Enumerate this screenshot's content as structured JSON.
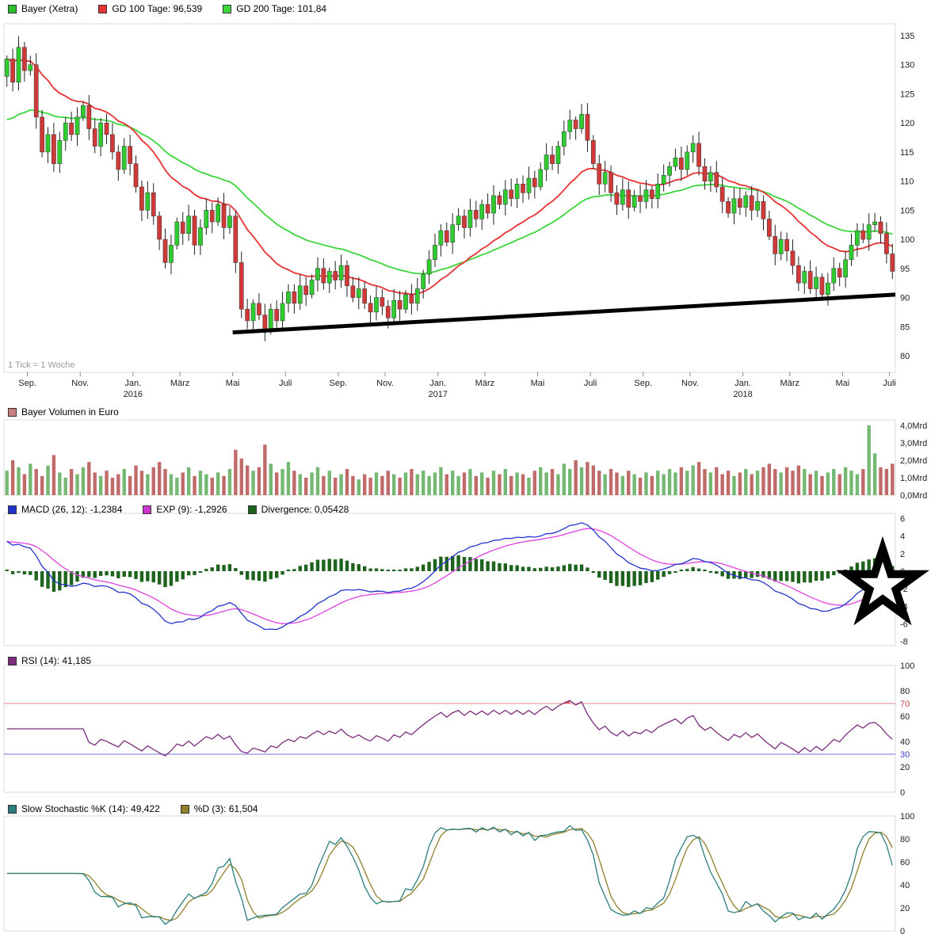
{
  "price_note": "1 Tick = 1 Woche",
  "legends": {
    "price": [
      {
        "label": "Bayer (Xetra)",
        "color": "#2fbe2f"
      },
      {
        "label": "GD 100 Tage: 96,539",
        "color": "#e63232"
      },
      {
        "label": "GD 200 Tage: 101,84",
        "color": "#3cd63c"
      }
    ],
    "volume": [
      {
        "label": "Bayer Volumen in Euro",
        "color": "#c98080"
      }
    ],
    "macd": [
      {
        "label": "MACD (26, 12): -1,2384",
        "color": "#2233cc"
      },
      {
        "label": "EXP (9): -1,2926",
        "color": "#cc33cc"
      },
      {
        "label": "Divergence: 0,05428",
        "color": "#1e641e"
      }
    ],
    "rsi": [
      {
        "label": "RSI (14): 41,185",
        "color": "#7b2d7b"
      }
    ],
    "stoch": [
      {
        "label": "Slow Stochastic %K (14): 49,422",
        "color": "#2a7d7d"
      },
      {
        "label": "%D (3): 61,504",
        "color": "#8f7f2a"
      }
    ]
  },
  "annotations": [
    {
      "type": "star",
      "panel": "macd",
      "color": "#000000"
    }
  ],
  "chart_data": [
    {
      "type": "candlestick",
      "title": "Bayer (Xetra)",
      "timeframe_note": "1 Tick = 1 Woche",
      "ylim": [
        80,
        137
      ],
      "y_ticks": [
        135,
        130,
        125,
        120,
        115,
        110,
        105,
        100,
        95,
        90,
        85,
        80
      ],
      "x_ticks": [
        {
          "label": "Sep.",
          "week": 5
        },
        {
          "label": "Nov.",
          "week": 14
        },
        {
          "label": "Jan.",
          "week": 23,
          "year": "2016"
        },
        {
          "label": "März",
          "week": 31
        },
        {
          "label": "Mai",
          "week": 40
        },
        {
          "label": "Juli",
          "week": 49
        },
        {
          "label": "Sep.",
          "week": 58
        },
        {
          "label": "Nov.",
          "week": 66
        },
        {
          "label": "Jan.",
          "week": 75,
          "year": "2017"
        },
        {
          "label": "März",
          "week": 83
        },
        {
          "label": "Mai",
          "week": 92
        },
        {
          "label": "Juli",
          "week": 101
        },
        {
          "label": "Sep.",
          "week": 110
        },
        {
          "label": "Nov.",
          "week": 118
        },
        {
          "label": "Jan.",
          "week": 127,
          "year": "2018"
        },
        {
          "label": "März",
          "week": 135
        },
        {
          "label": "Mai",
          "week": 144
        },
        {
          "label": "Juli",
          "week": 152
        }
      ],
      "first_open": 128,
      "weekly_closes": [
        131,
        127,
        133,
        129,
        130,
        121,
        115,
        118,
        113,
        117,
        120,
        118,
        121,
        123,
        119,
        116,
        120,
        118,
        115,
        112,
        116,
        113,
        109,
        105,
        108,
        104,
        100,
        96,
        99,
        103,
        101,
        104,
        99,
        102,
        105,
        103,
        106,
        102,
        104,
        96,
        88,
        86,
        89,
        87,
        84.5,
        88,
        86,
        89,
        91,
        89,
        92,
        90.5,
        93,
        95,
        92.5,
        94.5,
        93,
        95.5,
        92,
        90,
        91.5,
        89,
        87.5,
        90,
        88.5,
        86.5,
        89.5,
        88,
        90.5,
        89,
        91.5,
        94,
        96.5,
        99,
        101.5,
        99.5,
        102.5,
        104,
        102,
        105,
        103.5,
        106,
        104.5,
        107.5,
        106,
        108.5,
        107,
        109.5,
        108,
        110.5,
        109,
        112,
        114.5,
        113,
        116,
        118.5,
        120.5,
        119,
        121.5,
        117,
        113,
        109.5,
        111.5,
        108,
        106,
        108.5,
        105.5,
        107.5,
        106.5,
        108.5,
        107,
        109.5,
        111,
        112.5,
        114,
        112,
        115,
        116.5,
        112.5,
        110,
        111.5,
        109,
        106.5,
        104.5,
        107,
        105.5,
        107.5,
        105,
        106.5,
        103.5,
        100.5,
        97.5,
        100,
        98,
        95.5,
        92.5,
        94.5,
        91.5,
        93.5,
        90.5,
        92.5,
        95,
        93.5,
        96.5,
        99,
        101.5,
        100,
        102.5,
        103,
        101,
        97.5,
        94.5
      ],
      "overlays": [
        {
          "name": "GD 100 Tage",
          "type": "moving-average",
          "weeks": 20,
          "seed": 131,
          "color": "#e63232",
          "current": "96,539"
        },
        {
          "name": "GD 200 Tage",
          "type": "moving-average",
          "weeks": 40,
          "seed": 120,
          "color": "#3cd63c",
          "current": "101,84"
        }
      ],
      "trendline": {
        "from_week": 40,
        "from_value": 84,
        "to_value": 90.5,
        "color": "#000000",
        "width": 5
      },
      "colors": {
        "up": "#2ecc2e",
        "down": "#d13838",
        "wick": "#222222"
      }
    },
    {
      "type": "bar",
      "title": "Bayer Volumen in Euro",
      "unit": "Mrd",
      "ylim": [
        0,
        4
      ],
      "y_ticks": [
        "4,0Mrd",
        "3,0Mrd",
        "2,0Mrd",
        "1,0Mrd",
        "0,0Mrd"
      ],
      "values": [
        1.4,
        2.0,
        1.6,
        1.2,
        1.8,
        1.5,
        1.1,
        1.7,
        2.3,
        1.3,
        1.0,
        1.5,
        1.2,
        1.6,
        1.9,
        1.3,
        1.1,
        1.4,
        1.0,
        1.2,
        1.5,
        1.1,
        1.7,
        1.4,
        1.2,
        1.6,
        1.9,
        1.5,
        1.2,
        1.0,
        1.3,
        1.6,
        1.1,
        1.4,
        1.2,
        1.0,
        1.3,
        1.1,
        1.5,
        2.6,
        2.1,
        1.7,
        1.4,
        1.6,
        2.9,
        1.8,
        1.3,
        1.5,
        1.9,
        1.4,
        1.2,
        1.0,
        1.3,
        1.6,
        1.1,
        1.4,
        1.0,
        1.2,
        1.5,
        1.1,
        0.9,
        1.2,
        1.0,
        1.3,
        1.1,
        1.4,
        1.2,
        1.0,
        1.3,
        1.5,
        1.2,
        1.4,
        1.1,
        1.3,
        1.6,
        1.2,
        1.4,
        1.1,
        1.3,
        1.5,
        1.1,
        1.3,
        1.0,
        1.4,
        1.2,
        1.5,
        1.1,
        1.3,
        1.2,
        1.0,
        1.4,
        1.6,
        1.3,
        1.5,
        1.2,
        1.8,
        1.5,
        2.0,
        1.6,
        1.9,
        1.7,
        1.4,
        1.2,
        1.5,
        1.3,
        1.1,
        1.4,
        1.2,
        1.0,
        1.3,
        1.1,
        1.4,
        1.2,
        1.5,
        1.3,
        1.6,
        1.4,
        1.7,
        1.9,
        1.5,
        1.3,
        1.6,
        1.2,
        1.4,
        1.1,
        1.3,
        1.5,
        1.2,
        1.4,
        1.6,
        1.8,
        1.5,
        1.3,
        1.6,
        1.4,
        1.7,
        1.5,
        1.2,
        1.4,
        1.1,
        1.3,
        1.5,
        1.2,
        1.6,
        1.4,
        1.2,
        1.5,
        4.0,
        2.4,
        1.6,
        1.5,
        1.8
      ],
      "colors": {
        "up": "#74b874",
        "down": "#c06a6a"
      }
    },
    {
      "type": "macd",
      "slow": 26,
      "fast": 12,
      "signal": 9,
      "current": {
        "macd": "-1,2384",
        "signal": "-1,2926",
        "divergence": "0,05428"
      },
      "ylim": [
        -8,
        6
      ],
      "y_ticks": [
        6,
        4,
        2,
        0,
        -2,
        -4,
        -6,
        -8
      ],
      "colors": {
        "macd": "#2233cc",
        "signal": "#e040e0",
        "histogram": "#1e641e"
      },
      "source": "weekly_closes"
    },
    {
      "type": "rsi",
      "period": 14,
      "current": "41,185",
      "ylim": [
        0,
        100
      ],
      "y_ticks": [
        100,
        80,
        70,
        60,
        40,
        30,
        20,
        0
      ],
      "guides": [
        {
          "value": 70,
          "color": "#e08888"
        },
        {
          "value": 30,
          "color": "#7070dd"
        }
      ],
      "colors": {
        "line": "#7b2d7b",
        "overbought_fill": "#e05555"
      },
      "source": "weekly_closes"
    },
    {
      "type": "stochastic",
      "k_period": 14,
      "k_smooth": 3,
      "d_period": 3,
      "current": {
        "k": "49,422",
        "d": "61,504"
      },
      "ylim": [
        0,
        100
      ],
      "y_ticks": [
        100,
        80,
        60,
        40,
        20,
        0
      ],
      "colors": {
        "k": "#2a7d7d",
        "d": "#8f7f2a"
      },
      "source": "weekly_closes"
    }
  ]
}
